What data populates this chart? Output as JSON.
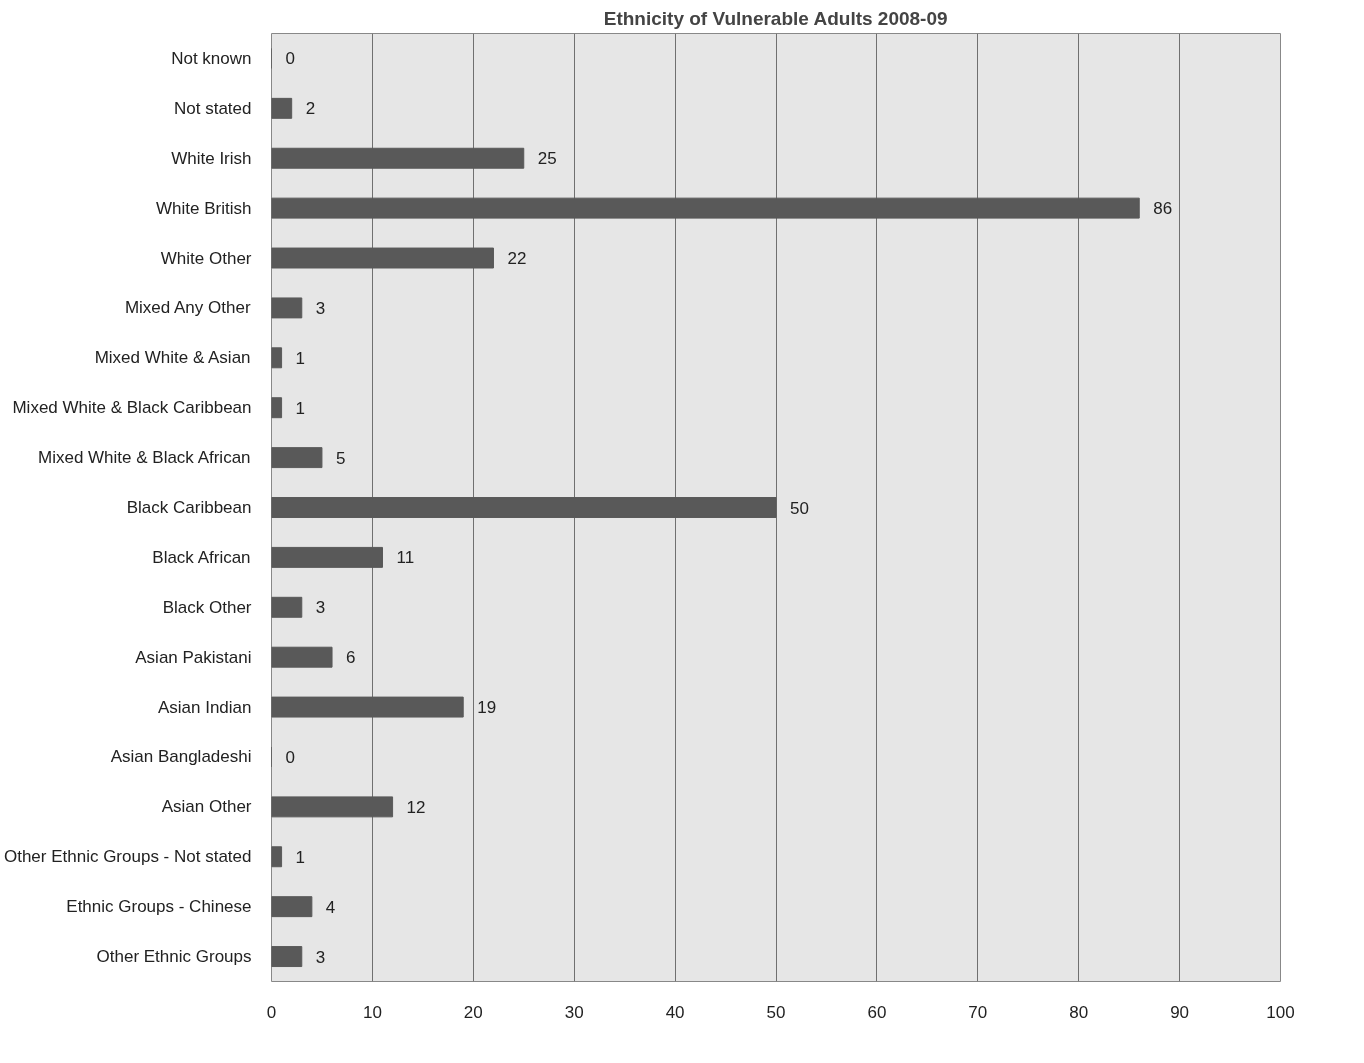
{
  "chart_data": {
    "type": "bar",
    "orientation": "horizontal",
    "title": "Ethnicity of Vulnerable Adults 2008-09",
    "categories": [
      "Not known",
      "Not stated",
      "White Irish",
      "White British",
      "White Other",
      "Mixed Any Other",
      "Mixed White & Asian",
      "Mixed White & Black Caribbean",
      "Mixed White & Black African",
      "Black Caribbean",
      "Black African",
      "Black Other",
      "Asian Pakistani",
      "Asian Indian",
      "Asian Bangladeshi",
      "Asian Other",
      "Other Ethnic Groups - Not stated",
      "Ethnic Groups - Chinese",
      "Other Ethnic Groups"
    ],
    "values": [
      0,
      2,
      25,
      86,
      22,
      3,
      1,
      1,
      5,
      50,
      11,
      3,
      6,
      19,
      0,
      12,
      1,
      4,
      3
    ],
    "color": "#595959",
    "xlim": [
      0,
      100
    ],
    "xticks": [
      0,
      10,
      20,
      30,
      40,
      50,
      60,
      70,
      80,
      90,
      100
    ],
    "grid": "x",
    "data_labels": true
  }
}
